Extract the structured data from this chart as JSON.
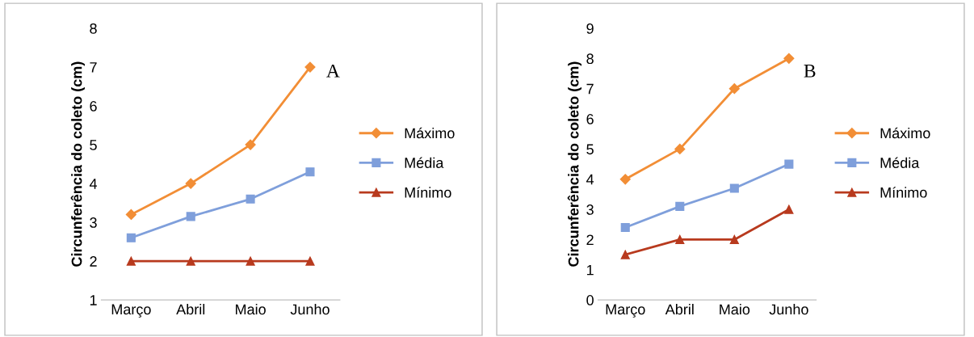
{
  "chart_data": [
    {
      "type": "line",
      "ylabel": "Circunferência do coleto (cm)",
      "categories": [
        "Março",
        "Abril",
        "Maio",
        "Junho"
      ],
      "ylim": [
        1,
        8
      ],
      "yticks": [
        1,
        2,
        3,
        4,
        5,
        6,
        7,
        8
      ],
      "grid": false,
      "legend": "right",
      "annotations": [
        "A"
      ],
      "series": [
        {
          "name": "Máximo",
          "color": "#f28e36",
          "marker": "diamond",
          "values": [
            3.2,
            4.0,
            5.0,
            7.0
          ]
        },
        {
          "name": "Média",
          "color": "#7f9fdb",
          "marker": "square",
          "values": [
            2.6,
            3.15,
            3.6,
            4.3
          ]
        },
        {
          "name": "Mínimo",
          "color": "#b83a1e",
          "marker": "triangle",
          "values": [
            2,
            2,
            2,
            2
          ]
        }
      ]
    },
    {
      "type": "line",
      "ylabel": "Circunferência do coleto (cm)",
      "categories": [
        "Março",
        "Abril",
        "Maio",
        "Junho"
      ],
      "ylim": [
        0,
        9
      ],
      "yticks": [
        0,
        1,
        2,
        3,
        4,
        5,
        6,
        7,
        8,
        9
      ],
      "grid": false,
      "legend": "right",
      "annotations": [
        "B"
      ],
      "series": [
        {
          "name": "Máximo",
          "color": "#f28e36",
          "marker": "diamond",
          "values": [
            4,
            5,
            7,
            8
          ]
        },
        {
          "name": "Média",
          "color": "#7f9fdb",
          "marker": "square",
          "values": [
            2.4,
            3.1,
            3.7,
            4.5
          ]
        },
        {
          "name": "Mínimo",
          "color": "#b83a1e",
          "marker": "triangle",
          "values": [
            1.5,
            2,
            2,
            3
          ]
        }
      ]
    }
  ]
}
